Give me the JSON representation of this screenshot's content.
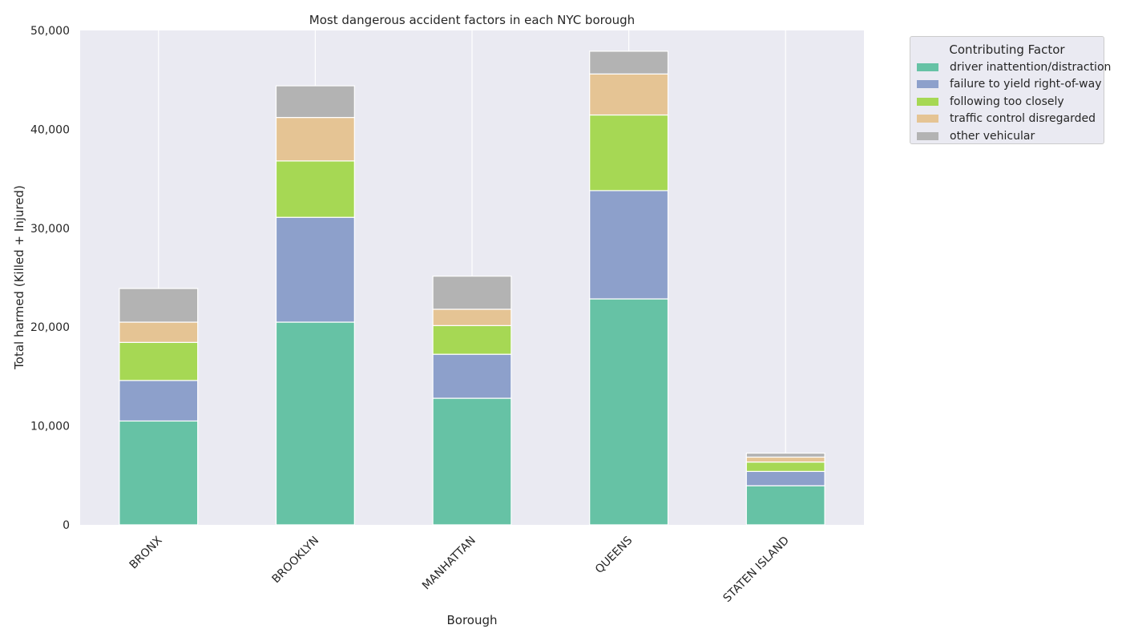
{
  "chart_data": {
    "type": "bar",
    "stacked": true,
    "title": "Most dangerous accident factors in each NYC borough",
    "xlabel": "Borough",
    "ylabel": "Total harmed (Killed + Injured)",
    "categories": [
      "BRONX",
      "BROOKLYN",
      "MANHATTAN",
      "QUEENS",
      "STATEN ISLAND"
    ],
    "ylim": [
      0,
      50000
    ],
    "yticks": [
      0,
      10000,
      20000,
      30000,
      40000,
      50000
    ],
    "ytick_labels": [
      "0",
      "10,000",
      "20,000",
      "30,000",
      "40,000",
      "50,000"
    ],
    "grid": true,
    "legend_title": "Contributing Factor",
    "legend_placement": "outside top-right",
    "series": [
      {
        "name": "driver inattention/distraction",
        "color": "#66c2a5",
        "values": [
          10500,
          20500,
          12800,
          22850,
          3950
        ]
      },
      {
        "name": "failure to yield right-of-way",
        "color": "#8da0cb",
        "values": [
          4100,
          10600,
          4450,
          10950,
          1450
        ]
      },
      {
        "name": "following too closely",
        "color": "#a6d854",
        "values": [
          3850,
          5700,
          2900,
          7650,
          950
        ]
      },
      {
        "name": "traffic control disregarded",
        "color": "#e5c494",
        "values": [
          2050,
          4400,
          1650,
          4150,
          500
        ]
      },
      {
        "name": "other vehicular",
        "color": "#b3b3b3",
        "values": [
          3400,
          3200,
          3350,
          2300,
          400
        ]
      }
    ]
  }
}
